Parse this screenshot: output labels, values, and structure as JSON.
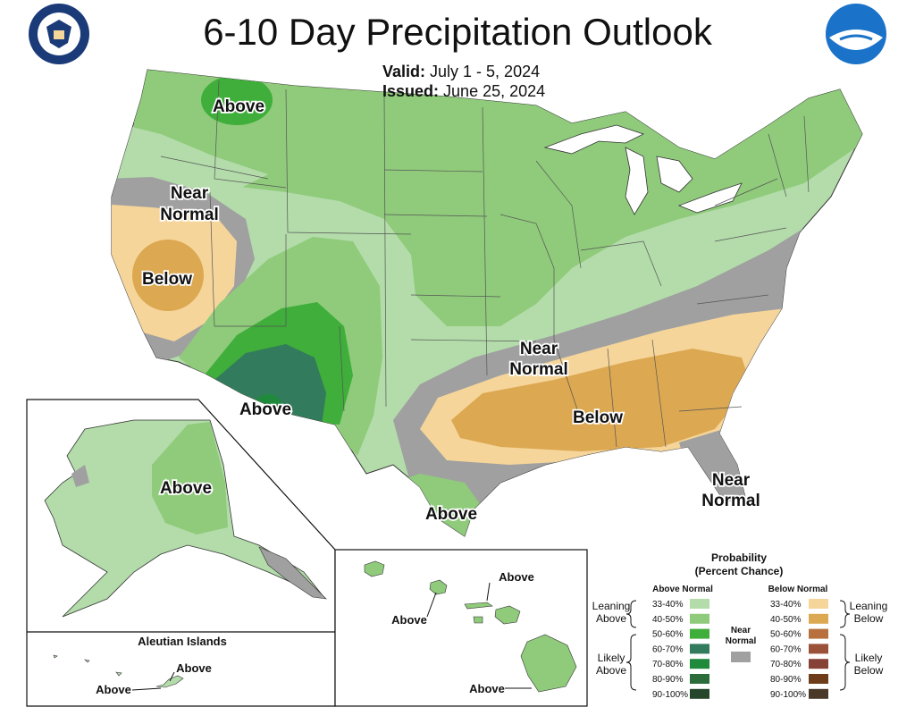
{
  "header": {
    "title": "6-10 Day Precipitation Outlook",
    "valid_label": "Valid:",
    "valid_value": "July 1 - 5, 2024",
    "issued_label": "Issued:",
    "issued_value": "June 25, 2024"
  },
  "colors": {
    "leaning_above": "#b3dcaa",
    "above_40_50": "#8fcb7b",
    "above_50_60": "#3fae3a",
    "above_60_70": "#327b5c",
    "near_normal": "#a0a0a0",
    "leaning_below": "#f5d59a",
    "below_40_50": "#dca851"
  },
  "map_labels": {
    "above_north": "Above",
    "near_normal_west_1": "Near",
    "near_normal_west_2": "Normal",
    "below_west": "Below",
    "above_southwest": "Above",
    "near_normal_south_1": "Near",
    "near_normal_south_2": "Normal",
    "below_southeast": "Below",
    "near_normal_florida_1": "Near",
    "near_normal_florida_2": "Normal",
    "above_texas": "Above",
    "above_alaska": "Above",
    "aleutian_title": "Aleutian Islands",
    "aleutian_above_1": "Above",
    "aleutian_above_2": "Above",
    "hawaii_above_1": "Above",
    "hawaii_above_2": "Above",
    "hawaii_above_3": "Above"
  },
  "legend": {
    "title_1": "Probability",
    "title_2": "(Percent Chance)",
    "above_header": "Above Normal",
    "below_header": "Below Normal",
    "near_1": "Near",
    "near_2": "Normal",
    "leaning_above_1": "Leaning",
    "leaning_above_2": "Above",
    "likely_above_1": "Likely",
    "likely_above_2": "Above",
    "leaning_below_1": "Leaning",
    "leaning_below_2": "Below",
    "likely_below_1": "Likely",
    "likely_below_2": "Below",
    "above_bins": [
      {
        "range": "33-40%",
        "color": "#b3dcaa"
      },
      {
        "range": "40-50%",
        "color": "#8fcb7b"
      },
      {
        "range": "50-60%",
        "color": "#3fae3a"
      },
      {
        "range": "60-70%",
        "color": "#327b5c"
      },
      {
        "range": "70-80%",
        "color": "#1f8a3c"
      },
      {
        "range": "80-90%",
        "color": "#2c6b3a"
      },
      {
        "range": "90-100%",
        "color": "#25462b"
      }
    ],
    "below_bins": [
      {
        "range": "33-40%",
        "color": "#f5d59a"
      },
      {
        "range": "40-50%",
        "color": "#dca851"
      },
      {
        "range": "50-60%",
        "color": "#b8713e"
      },
      {
        "range": "60-70%",
        "color": "#9a5238"
      },
      {
        "range": "70-80%",
        "color": "#874236"
      },
      {
        "range": "80-90%",
        "color": "#6e3c18"
      },
      {
        "range": "90-100%",
        "color": "#4a3828"
      }
    ]
  }
}
